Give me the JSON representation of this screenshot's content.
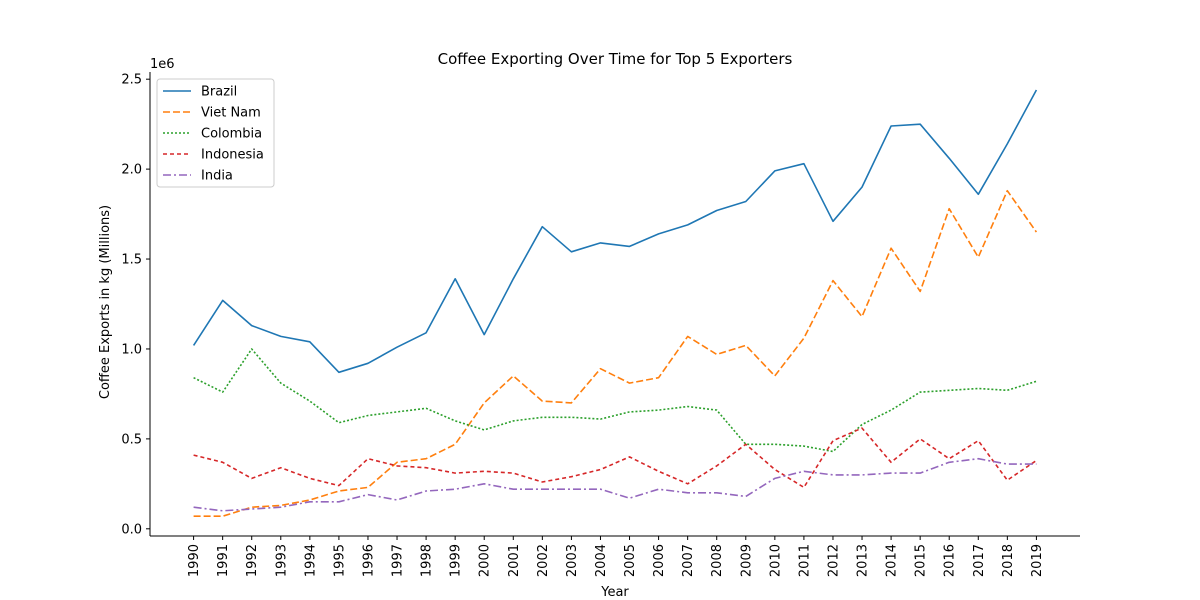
{
  "chart_data": {
    "type": "line",
    "title": "Coffee Exporting Over Time for Top 5 Exporters",
    "xlabel": "Year",
    "ylabel": "Coffee Exports in kg (Millions)",
    "y_offset_label": "1e6",
    "x": [
      1990,
      1991,
      1992,
      1993,
      1994,
      1995,
      1996,
      1997,
      1998,
      1999,
      2000,
      2001,
      2002,
      2003,
      2004,
      2005,
      2006,
      2007,
      2008,
      2009,
      2010,
      2011,
      2012,
      2013,
      2014,
      2015,
      2016,
      2017,
      2018,
      2019
    ],
    "x_tick_labels": [
      "1990",
      "1991",
      "1992",
      "1993",
      "1994",
      "1995",
      "1996",
      "1997",
      "1998",
      "1999",
      "2000",
      "2001",
      "2002",
      "2003",
      "2004",
      "2005",
      "2006",
      "2007",
      "2008",
      "2009",
      "2010",
      "2011",
      "2012",
      "2013",
      "2014",
      "2015",
      "2016",
      "2017",
      "2018",
      "2019"
    ],
    "y_ticks": [
      0.0,
      0.5,
      1.0,
      1.5,
      2.0,
      2.5
    ],
    "y_tick_labels": [
      "0.0",
      "0.5",
      "1.0",
      "1.5",
      "2.0",
      "2.5"
    ],
    "ylim": [
      -0.04,
      2.54
    ],
    "xlim": [
      1988.5,
      2020.5
    ],
    "grid": false,
    "legend_position": "top-left",
    "series": [
      {
        "name": "Brazil",
        "color": "#1f77b4",
        "dash": "solid",
        "values": [
          1.02,
          1.27,
          1.13,
          1.07,
          1.04,
          0.87,
          0.92,
          1.01,
          1.09,
          1.39,
          1.08,
          1.39,
          1.68,
          1.54,
          1.59,
          1.57,
          1.64,
          1.69,
          1.77,
          1.82,
          1.99,
          2.03,
          1.71,
          1.9,
          2.24,
          2.25,
          2.06,
          1.86,
          2.14,
          2.44
        ]
      },
      {
        "name": "Viet Nam",
        "color": "#ff7f0e",
        "dash": "dashed",
        "values": [
          0.07,
          0.07,
          0.12,
          0.13,
          0.16,
          0.21,
          0.23,
          0.37,
          0.39,
          0.47,
          0.7,
          0.85,
          0.71,
          0.7,
          0.89,
          0.81,
          0.84,
          1.07,
          0.97,
          1.02,
          0.85,
          1.06,
          1.38,
          1.18,
          1.56,
          1.32,
          1.78,
          1.51,
          1.88,
          1.65
        ]
      },
      {
        "name": "Colombia",
        "color": "#2ca02c",
        "dash": "dotted",
        "values": [
          0.84,
          0.76,
          1.0,
          0.81,
          0.71,
          0.59,
          0.63,
          0.65,
          0.67,
          0.6,
          0.55,
          0.6,
          0.62,
          0.62,
          0.61,
          0.65,
          0.66,
          0.68,
          0.66,
          0.47,
          0.47,
          0.46,
          0.43,
          0.58,
          0.66,
          0.76,
          0.77,
          0.78,
          0.77,
          0.82
        ]
      },
      {
        "name": "Indonesia",
        "color": "#d62728",
        "dash": "dashed-dense",
        "values": [
          0.41,
          0.37,
          0.28,
          0.34,
          0.28,
          0.24,
          0.39,
          0.35,
          0.34,
          0.31,
          0.32,
          0.31,
          0.26,
          0.29,
          0.33,
          0.4,
          0.32,
          0.25,
          0.35,
          0.47,
          0.33,
          0.23,
          0.49,
          0.56,
          0.37,
          0.5,
          0.39,
          0.49,
          0.27,
          0.38
        ]
      },
      {
        "name": "India",
        "color": "#9467bd",
        "dash": "dashdot",
        "values": [
          0.12,
          0.1,
          0.11,
          0.12,
          0.15,
          0.15,
          0.19,
          0.16,
          0.21,
          0.22,
          0.25,
          0.22,
          0.22,
          0.22,
          0.22,
          0.17,
          0.22,
          0.2,
          0.2,
          0.18,
          0.28,
          0.32,
          0.3,
          0.3,
          0.31,
          0.31,
          0.37,
          0.39,
          0.36,
          0.36
        ]
      }
    ]
  }
}
